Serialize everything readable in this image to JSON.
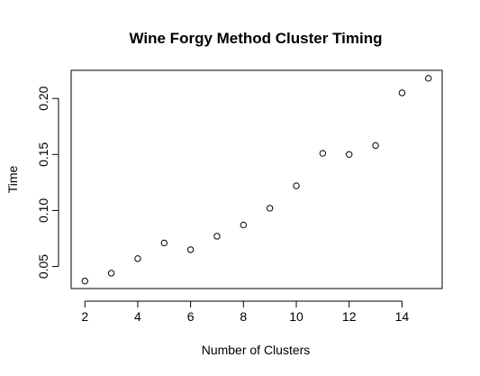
{
  "chart_data": {
    "type": "scatter",
    "title": "Wine Forgy Method Cluster Timing",
    "xlabel": "Number of Clusters",
    "ylabel": "Time",
    "xlim": [
      1.48,
      15.52
    ],
    "ylim": [
      0.0303,
      0.2251
    ],
    "x_ticks": [
      2,
      4,
      6,
      8,
      10,
      12,
      14
    ],
    "y_ticks": [
      0.05,
      0.1,
      0.15,
      0.2
    ],
    "x_tick_labels": [
      "2",
      "4",
      "6",
      "8",
      "10",
      "12",
      "14"
    ],
    "y_tick_labels": [
      "0.05",
      "0.10",
      "0.15",
      "0.20"
    ],
    "grid": false,
    "legend": "none",
    "marker": "open-circle",
    "points": [
      {
        "x": 2,
        "y": 0.037
      },
      {
        "x": 3,
        "y": 0.044
      },
      {
        "x": 4,
        "y": 0.057
      },
      {
        "x": 5,
        "y": 0.071
      },
      {
        "x": 6,
        "y": 0.065
      },
      {
        "x": 7,
        "y": 0.077
      },
      {
        "x": 8,
        "y": 0.087
      },
      {
        "x": 9,
        "y": 0.102
      },
      {
        "x": 10,
        "y": 0.122
      },
      {
        "x": 11,
        "y": 0.151
      },
      {
        "x": 12,
        "y": 0.15
      },
      {
        "x": 13,
        "y": 0.158
      },
      {
        "x": 14,
        "y": 0.205
      },
      {
        "x": 15,
        "y": 0.218
      }
    ]
  }
}
